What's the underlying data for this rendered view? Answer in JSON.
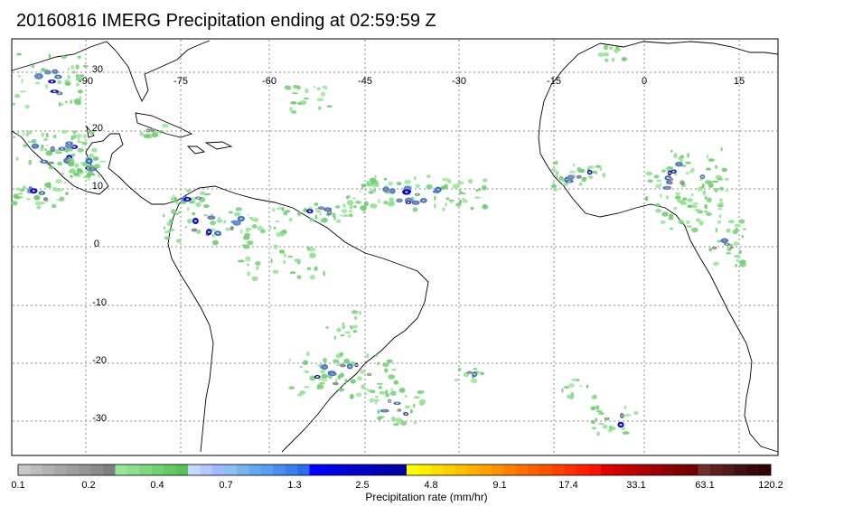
{
  "title": "20160816 IMERG Precipitation ending at 02:59:59 Z",
  "map": {
    "lon_labels": [
      "-90",
      "-75",
      "-60",
      "-45",
      "-30",
      "-15",
      "0",
      "15"
    ],
    "lat_labels": [
      "30",
      "20",
      "10",
      "0",
      "-10",
      "-20",
      "-30"
    ],
    "lon_range": [
      -101,
      20
    ],
    "lat_range": [
      -37,
      35
    ]
  },
  "colorbar": {
    "title": "Precipitation rate (mm/hr)",
    "tick_labels": [
      "0.1",
      "0.2",
      "0.4",
      "0.7",
      "1.3",
      "2.5",
      "4.8",
      "9.1",
      "17.4",
      "33.1",
      "63.1",
      "120.2"
    ],
    "colors": [
      "#c8c8c8",
      "#bcbcbc",
      "#b2b2b2",
      "#a8a8a8",
      "#9e9e9e",
      "#949494",
      "#8a8a8a",
      "#808080",
      "#99e699",
      "#8cdf8c",
      "#7fd87f",
      "#72d172",
      "#65ca65",
      "#58c358",
      "#c8d8ff",
      "#b4c8ff",
      "#a0b8ff",
      "#8cc0f0",
      "#78b4f0",
      "#64a8f0",
      "#5a9ef0",
      "#4a8ef0",
      "#3a7ef0",
      "#2a6ef0",
      "#0000ff",
      "#0000f0",
      "#0000e0",
      "#0000d0",
      "#0000c8",
      "#0000bc",
      "#0000b0",
      "#0000a4",
      "#ffff00",
      "#ffef00",
      "#ffdf00",
      "#ffcf00",
      "#ffbf00",
      "#ffaf00",
      "#ffa000",
      "#ff9000",
      "#ff8000",
      "#ff7000",
      "#ff6000",
      "#ff5000",
      "#ff4000",
      "#ff3000",
      "#ff2000",
      "#ff1000",
      "#e00000",
      "#d00000",
      "#c00000",
      "#b00000",
      "#a00000",
      "#900000",
      "#800000",
      "#700000",
      "#703030",
      "#602020",
      "#501818",
      "#401010",
      "#380808",
      "#300000"
    ]
  }
}
